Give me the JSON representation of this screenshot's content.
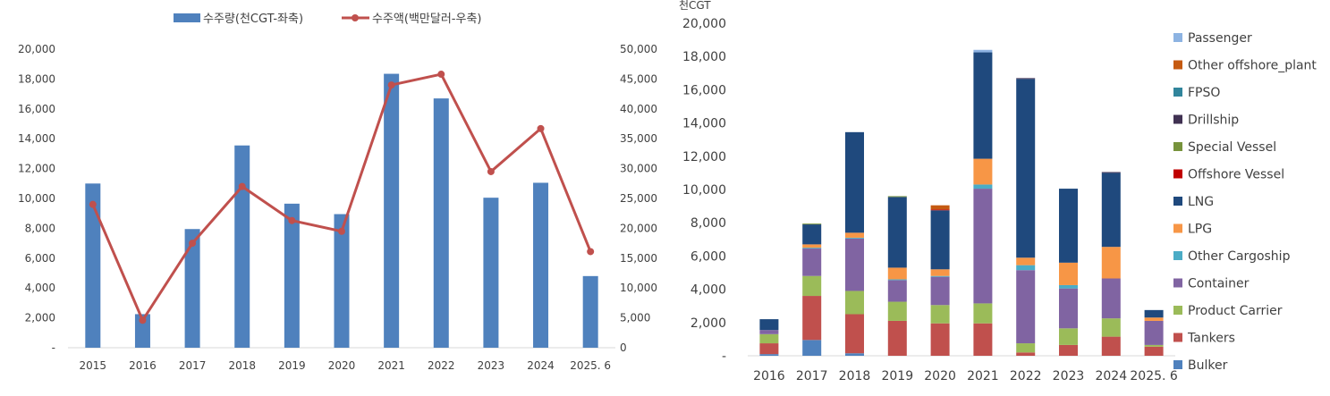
{
  "chart_data": [
    {
      "type": "bar+line",
      "categories": [
        "2015",
        "2016",
        "2017",
        "2018",
        "2019",
        "2020",
        "2021",
        "2022",
        "2023",
        "2024",
        "2025. 6"
      ],
      "series": [
        {
          "name": "수주량(천CGT-좌축)",
          "type": "bar",
          "axis": "left",
          "color": "#4F81BD",
          "values": [
            11000,
            2250,
            7950,
            13550,
            9650,
            8950,
            18350,
            16700,
            10050,
            11050,
            4800
          ]
        },
        {
          "name": "수주액(백만달러-우축)",
          "type": "line",
          "axis": "right",
          "color": "#C0504D",
          "values": [
            24000,
            4600,
            17500,
            27000,
            21300,
            19500,
            44000,
            45800,
            29500,
            36700,
            16100
          ]
        }
      ],
      "y_left": {
        "min": 0,
        "max": 20000,
        "step": 2000,
        "ticks": [
          "-",
          "2,000",
          "4,000",
          "6,000",
          "8,000",
          "10,000",
          "12,000",
          "14,000",
          "16,000",
          "18,000",
          "20,000"
        ]
      },
      "y_right": {
        "min": 0,
        "max": 50000,
        "step": 5000,
        "ticks": [
          "0",
          "5,000",
          "10,000",
          "15,000",
          "20,000",
          "25,000",
          "30,000",
          "35,000",
          "40,000",
          "45,000",
          "50,000"
        ]
      },
      "grid": false,
      "legend": "top"
    },
    {
      "type": "stacked-bar",
      "unit_label": "천CGT",
      "categories": [
        "2016",
        "2017",
        "2018",
        "2019",
        "2020",
        "2021",
        "2022",
        "2023",
        "2024",
        "2025. 6"
      ],
      "ylim": [
        0,
        20000
      ],
      "ticks": [
        "-",
        "2,000",
        "4,000",
        "6,000",
        "8,000",
        "10,000",
        "12,000",
        "14,000",
        "16,000",
        "18,000",
        "20,000"
      ],
      "grid": false,
      "legend": "right",
      "series": [
        {
          "name": "Bulker",
          "color": "#4F81BD",
          "values": [
            100,
            950,
            150,
            0,
            0,
            0,
            0,
            0,
            0,
            0
          ]
        },
        {
          "name": "Tankers",
          "color": "#C0504D",
          "values": [
            650,
            2650,
            2350,
            2100,
            1950,
            1950,
            200,
            650,
            1150,
            550
          ]
        },
        {
          "name": "Product Carrier",
          "color": "#9BBB59",
          "values": [
            550,
            1200,
            1400,
            1150,
            1100,
            1200,
            550,
            1000,
            1100,
            100
          ]
        },
        {
          "name": "Container",
          "color": "#8064A2",
          "values": [
            250,
            1650,
            3150,
            1300,
            1700,
            6900,
            4400,
            2400,
            2400,
            1450
          ]
        },
        {
          "name": "Other Cargoship",
          "color": "#4BACC6",
          "values": [
            0,
            50,
            50,
            50,
            50,
            250,
            300,
            200,
            0,
            0
          ]
        },
        {
          "name": "LPG",
          "color": "#F79646",
          "values": [
            0,
            200,
            300,
            700,
            400,
            1550,
            450,
            1350,
            1900,
            200
          ]
        },
        {
          "name": "LNG",
          "color": "#1F497D",
          "values": [
            650,
            1200,
            6050,
            4250,
            3550,
            6400,
            10750,
            4450,
            4450,
            450
          ]
        },
        {
          "name": "Offshore Vessel",
          "color": "#C00000",
          "values": [
            0,
            0,
            0,
            0,
            50,
            0,
            0,
            0,
            0,
            0
          ]
        },
        {
          "name": "Special Vessel",
          "color": "#77933C",
          "values": [
            0,
            50,
            0,
            50,
            0,
            0,
            0,
            0,
            0,
            0
          ]
        },
        {
          "name": "Drillship",
          "color": "#403152",
          "values": [
            0,
            0,
            0,
            0,
            0,
            0,
            50,
            0,
            50,
            0
          ]
        },
        {
          "name": "FPSO",
          "color": "#31859C",
          "values": [
            0,
            0,
            0,
            0,
            0,
            0,
            0,
            0,
            0,
            0
          ]
        },
        {
          "name": "Other offshore_plant",
          "color": "#C55A11",
          "values": [
            0,
            0,
            0,
            0,
            250,
            0,
            0,
            0,
            0,
            0
          ]
        },
        {
          "name": "Passenger",
          "color": "#8DB3E2",
          "values": [
            0,
            0,
            0,
            0,
            0,
            150,
            0,
            0,
            0,
            0
          ]
        }
      ]
    }
  ]
}
